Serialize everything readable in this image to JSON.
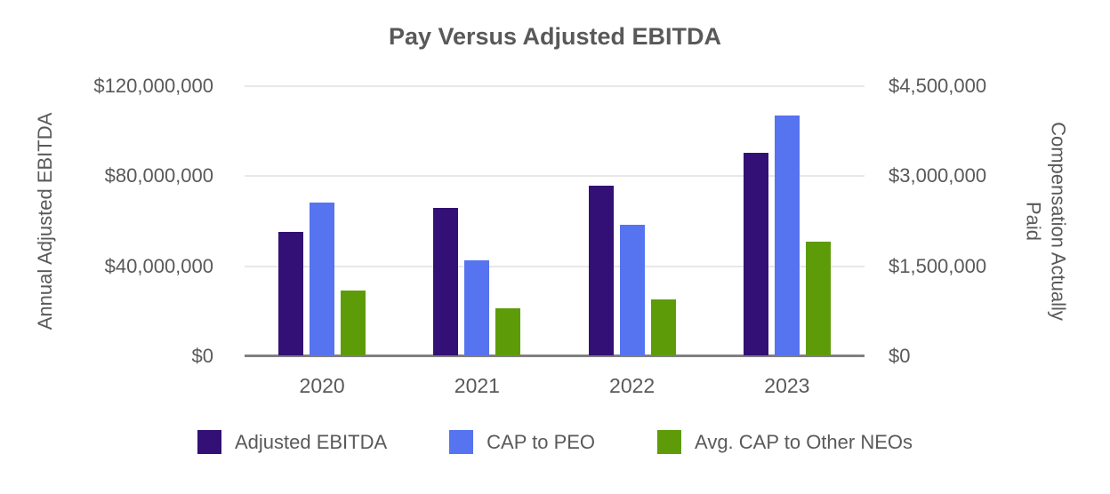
{
  "title": "Pay Versus Adjusted EBITDA",
  "chart_data": {
    "type": "bar",
    "title": "Pay Versus Adjusted EBITDA",
    "categories": [
      "2020",
      "2021",
      "2022",
      "2023"
    ],
    "series": [
      {
        "name": "Adjusted EBITDA",
        "axis": "left",
        "color": "#331075",
        "values": [
          55000000,
          65500000,
          75500000,
          90000000
        ]
      },
      {
        "name": "CAP to PEO",
        "axis": "right",
        "color": "#5673F0",
        "values": [
          2550000,
          1580000,
          2170000,
          4000000
        ]
      },
      {
        "name": "Avg. CAP to Other NEOs",
        "axis": "right",
        "color": "#5D9C08",
        "values": [
          1080000,
          780000,
          930000,
          1900000
        ]
      }
    ],
    "left_axis": {
      "title": "Annual Adjusted EBITDA",
      "min": 0,
      "max": 120000000,
      "ticks": [
        {
          "value": 0,
          "label": "$0"
        },
        {
          "value": 40000000,
          "label": "$40,000,000"
        },
        {
          "value": 80000000,
          "label": "$80,000,000"
        },
        {
          "value": 120000000,
          "label": "$120,000,000"
        }
      ]
    },
    "right_axis": {
      "title": "Compensation Actually Paid",
      "min": 0,
      "max": 4500000,
      "ticks": [
        {
          "value": 0,
          "label": "$0"
        },
        {
          "value": 1500000,
          "label": "$1,500,000"
        },
        {
          "value": 3000000,
          "label": "$3,000,000"
        },
        {
          "value": 4500000,
          "label": "$4,500,000"
        }
      ]
    },
    "grid": true,
    "legend_position": "bottom",
    "colors": {
      "text": "#595959",
      "gridline": "#e8e8e8",
      "axis_line": "#808080",
      "background": "#ffffff"
    }
  }
}
